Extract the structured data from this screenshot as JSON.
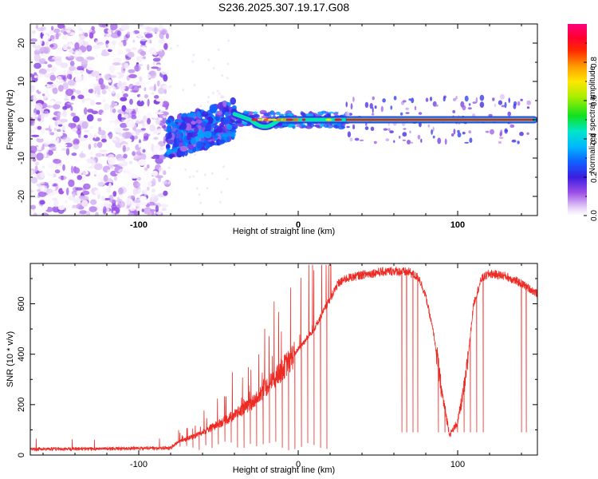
{
  "figure": {
    "title": "S236.2025.307.19.17.G08"
  },
  "chart_data": [
    {
      "type": "heatmap",
      "name": "spectrogram",
      "title": "S236.2025.307.19.17.G08",
      "xlabel": "Height of straight line (km)",
      "ylabel": "Frequency (Hz)",
      "xlim": [
        -168,
        150
      ],
      "ylim": [
        -25,
        25
      ],
      "xticks": [
        -100,
        0,
        100
      ],
      "xtick_labels": [
        "-100",
        "0",
        "100"
      ],
      "yticks": [
        -20,
        -10,
        0,
        10,
        20
      ],
      "ytick_labels": [
        "-20",
        "-10",
        "0",
        "10",
        "20"
      ],
      "colorbar": {
        "label": "Normalized spectral amplitude",
        "range": [
          0.0,
          1.0
        ],
        "ticks": [
          0.0,
          0.2,
          0.4,
          0.6,
          0.8
        ],
        "tick_labels": [
          "0.0",
          "0.2",
          "0.4",
          "0.6",
          "0.8"
        ],
        "colormap": "rainbow (white-violet-blue-cyan-green-yellow-orange-red-magenta)"
      },
      "regions": [
        {
          "x_range": [
            -168,
            -82
          ],
          "description": "diffuse noise across all frequencies",
          "freq_range": [
            -25,
            25
          ],
          "amplitude": [
            0.0,
            0.15
          ]
        },
        {
          "x_range": [
            -82,
            -40
          ],
          "description": "broad signal cluster rising toward 0 Hz",
          "freq_center": [
            -5,
            0
          ],
          "amplitude": [
            0.1,
            0.35
          ]
        },
        {
          "x_range": [
            -40,
            30
          ],
          "description": "signal converging to 0 Hz with small dip near -17 km",
          "freq_center": [
            0,
            -2,
            0
          ],
          "amplitude": [
            0.3,
            0.9
          ]
        },
        {
          "x_range": [
            30,
            148
          ],
          "description": "strong tone at 0 Hz",
          "freq_center": [
            0,
            0
          ],
          "amplitude": [
            0.85,
            1.0
          ]
        }
      ]
    },
    {
      "type": "line",
      "name": "snr",
      "xlabel": "Height of straight line (km)",
      "ylabel": "SNR (10 * v/v)",
      "xlim": [
        -168,
        150
      ],
      "ylim": [
        0,
        760
      ],
      "xticks": [
        -100,
        0,
        100
      ],
      "xtick_labels": [
        "-100",
        "0",
        "100"
      ],
      "yticks": [
        0,
        200,
        400,
        600
      ],
      "ytick_labels": [
        "0",
        "200",
        "400",
        "600"
      ],
      "color": "#ee2a24",
      "envelope_x": [
        -168,
        -80,
        -75,
        -60,
        -45,
        -30,
        -20,
        -10,
        0,
        10,
        20,
        25,
        30,
        40,
        50,
        60,
        70,
        76,
        80,
        85,
        90,
        95,
        100,
        105,
        110,
        115,
        120,
        130,
        140,
        150
      ],
      "envelope_y": [
        20,
        25,
        50,
        90,
        140,
        200,
        270,
        340,
        420,
        500,
        620,
        680,
        700,
        715,
        725,
        730,
        725,
        700,
        630,
        480,
        250,
        80,
        130,
        300,
        600,
        700,
        720,
        710,
        680,
        640
      ],
      "dropouts_x": [
        -74,
        -70,
        -66,
        -62,
        -58,
        -54,
        -50,
        -46,
        -42,
        -38,
        -34,
        -30,
        -26,
        -22,
        -18,
        -14,
        -10,
        -6,
        -2,
        2,
        6,
        10,
        14,
        18,
        65,
        68,
        72,
        75,
        88,
        92,
        100,
        104,
        108,
        112,
        116,
        140,
        143
      ]
    }
  ]
}
